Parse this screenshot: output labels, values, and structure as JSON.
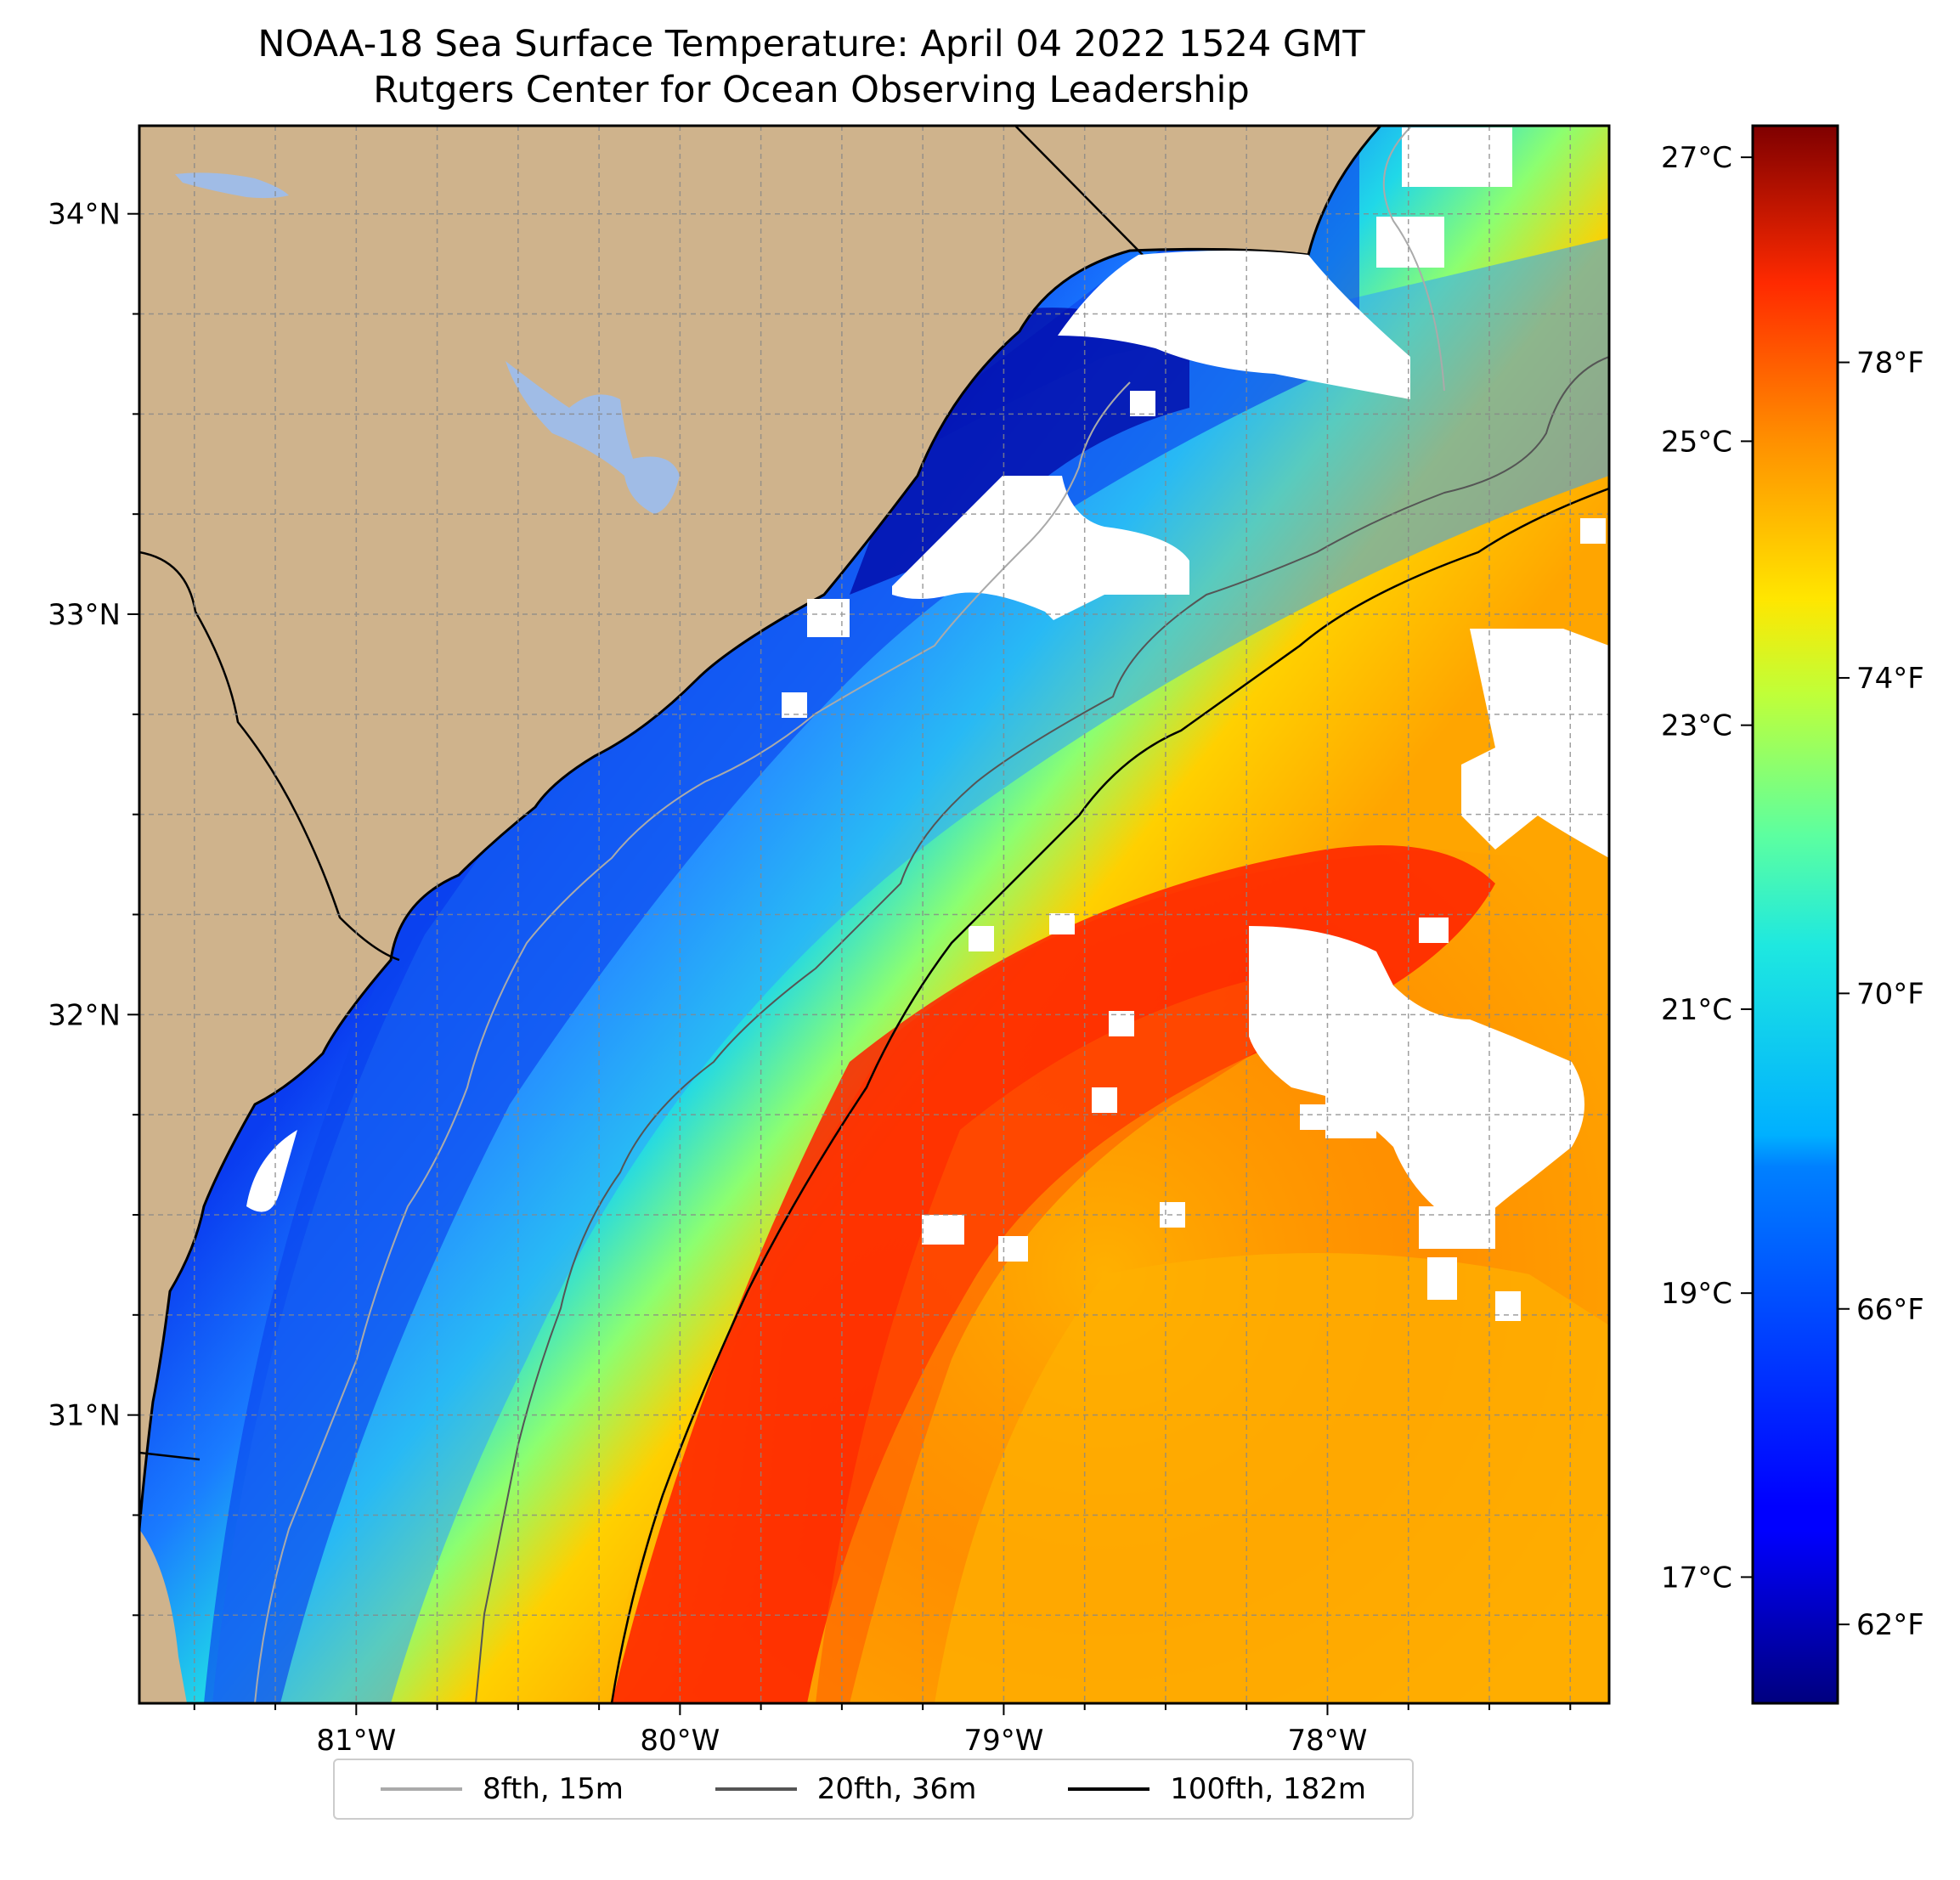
{
  "title": "NOAA-18 Sea Surface Temperature: April 04 2022 1524 GMT",
  "subtitle": "Rutgers Center for Ocean Observing Leadership",
  "map": {
    "lon_range": [
      -81.67,
      -77.13
    ],
    "lat_range": [
      30.28,
      34.22
    ],
    "lon_ticks": [
      {
        "value": -81,
        "label": "81°W"
      },
      {
        "value": -80,
        "label": "80°W"
      },
      {
        "value": -79,
        "label": "79°W"
      },
      {
        "value": -78,
        "label": "78°W"
      }
    ],
    "lat_ticks": [
      {
        "value": 31,
        "label": "31°N"
      },
      {
        "value": 32,
        "label": "32°N"
      },
      {
        "value": 33,
        "label": "33°N"
      },
      {
        "value": 34,
        "label": "34°N"
      }
    ],
    "gridlines": true,
    "land_color": "#cfb38c",
    "lake_color": "#a0bce6",
    "cloud_color": "#ffffff"
  },
  "colorbar": {
    "colormap": "jet",
    "celsius_ticks": [
      {
        "value": 17,
        "label": "17°C"
      },
      {
        "value": 19,
        "label": "19°C"
      },
      {
        "value": 21,
        "label": "21°C"
      },
      {
        "value": 23,
        "label": "23°C"
      },
      {
        "value": 25,
        "label": "25°C"
      },
      {
        "value": 27,
        "label": "27°C"
      }
    ],
    "fahrenheit_ticks": [
      {
        "value": 62,
        "label": "62°F"
      },
      {
        "value": 66,
        "label": "66°F"
      },
      {
        "value": 70,
        "label": "70°F"
      },
      {
        "value": 74,
        "label": "74°F"
      },
      {
        "value": 78,
        "label": "78°F"
      }
    ],
    "range_f": [
      61.0,
      81.0
    ]
  },
  "legend": {
    "placement": "bottom-center",
    "items": [
      {
        "label": "8fth, 15m",
        "color": "#aaaaaa"
      },
      {
        "label": "20fth, 36m",
        "color": "#555555"
      },
      {
        "label": "100fth, 182m",
        "color": "#000000"
      }
    ]
  }
}
